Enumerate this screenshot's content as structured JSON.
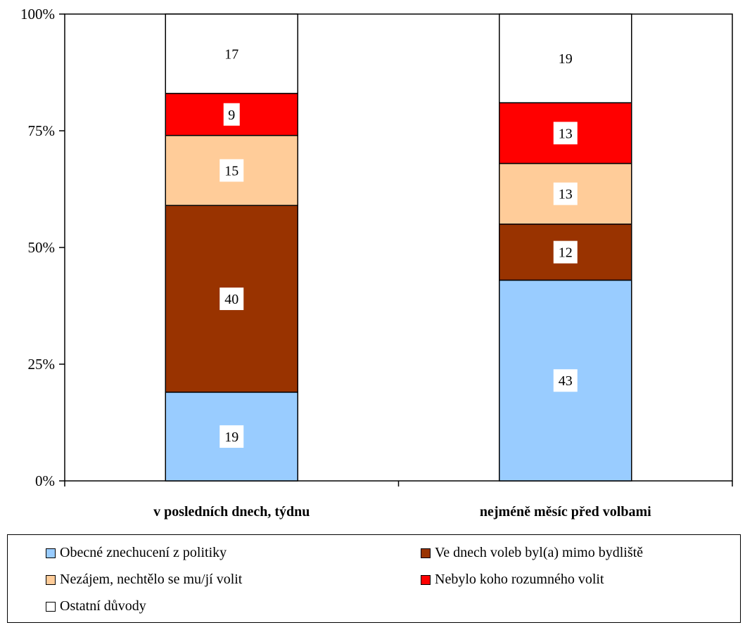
{
  "chart_data": {
    "type": "bar",
    "stacked": true,
    "percent_stacked": true,
    "categories": [
      "v posledních dnech, týdnu",
      "nejméně měsíc před volbami"
    ],
    "y_ticks": [
      "0%",
      "25%",
      "50%",
      "75%",
      "100%"
    ],
    "ylim": [
      0,
      100
    ],
    "grid": false,
    "legend_position": "bottom",
    "series": [
      {
        "name": "Obecné znechucení z politiky",
        "color": "#99CCFF",
        "values": [
          19,
          43
        ]
      },
      {
        "name": "Ve dnech voleb byl(a) mimo bydliště",
        "color": "#993300",
        "values": [
          40,
          12
        ]
      },
      {
        "name": "Nezájem, nechtělo se mu/jí volit",
        "color": "#FFCC99",
        "values": [
          15,
          13
        ]
      },
      {
        "name": "Nebylo koho rozumného volit",
        "color": "#FF0000",
        "values": [
          9,
          13
        ]
      },
      {
        "name": "Ostatní důvody",
        "color": "#FFFFFF",
        "values": [
          17,
          19
        ]
      }
    ]
  }
}
